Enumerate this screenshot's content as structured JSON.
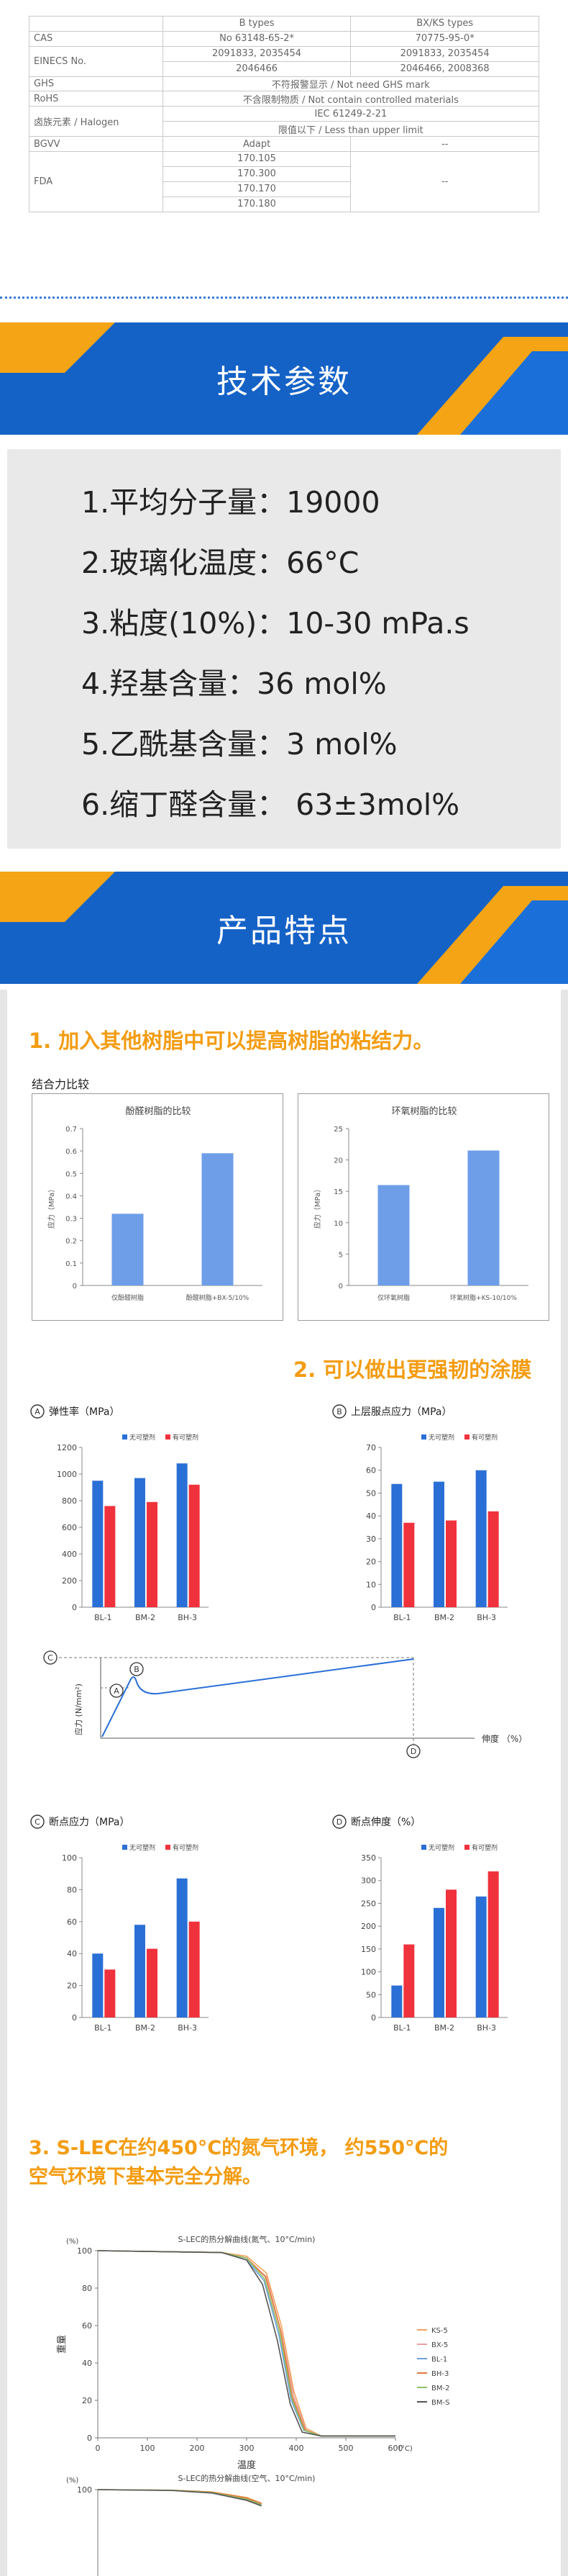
{
  "spec": {
    "header": [
      "",
      "B types",
      "BX/KS types"
    ],
    "cas": {
      "label": "CAS",
      "b": "No 63148-65-2*",
      "bx": "70775-95-0*"
    },
    "einecs": {
      "label": "EINECS No.",
      "b1": "2091833, 2035454",
      "bx1": "2091833, 2035454",
      "b2": "2046466",
      "bx2": "2046466, 2008368"
    },
    "ghs": {
      "label": "GHS",
      "value": "不符报警显示 / Not need GHS mark"
    },
    "rohs": {
      "label": "RoHS",
      "value": "不含限制物质 / Not contain controlled materials"
    },
    "halogen": {
      "label": "卤族元素 / Halogen",
      "v1": "IEC 61249-2-21",
      "v2": "限值以下 / Less than upper limit"
    },
    "bgvv": {
      "label": "BGVV",
      "b": "Adapt",
      "bx": "--"
    },
    "fda": {
      "label": "FDA",
      "b": [
        "170.105",
        "170.300",
        "170.170",
        "170.180"
      ],
      "bx": "--"
    }
  },
  "banner1": {
    "title": "技术参数"
  },
  "params": [
    "1.平均分子量：19000",
    "2.玻璃化温度：66°C",
    "3.粘度(10%)：10-30 mPa.s",
    "4.羟基含量：36 mol%",
    "5.乙酰基含量：3 mol%",
    "6.缩丁醛含量：  63±3mol%"
  ],
  "banner2": {
    "title": "产品特点"
  },
  "features": {
    "h1": "1. 加入其他树脂中可以提高树脂的粘结力。",
    "adhesion_title": "结合力比较",
    "h2": "2. 可以做出更强韧的涂膜",
    "h3_line1": "3. S-LEC在约450°C的氮气环境， 约550°C的",
    "h3_line2": "空气环境下基本完全分解。"
  },
  "stress_strain": {
    "ylabel": "应力 (N/mm²)",
    "xlabel": "伸度 （%）",
    "marks": [
      "C",
      "B",
      "A",
      "D"
    ]
  },
  "colors": {
    "blue": "#2a6fd6",
    "red": "#f0323c",
    "bar_light": "#6e9ee8",
    "orange": "#f39c12",
    "banner": "#1562c7",
    "banner_accent": "#f5a416"
  },
  "chart_data": [
    {
      "type": "bar",
      "title": "酚醛树脂的比较",
      "categories": [
        "仅酚醛树脂",
        "酚醛树脂+BX-5/10%"
      ],
      "values": [
        0.32,
        0.59
      ],
      "ylabel": "应力（MPa）",
      "ylim": [
        0,
        0.7
      ],
      "yticks": [
        "0",
        "0.1",
        "0.2",
        "0.3",
        "0.4",
        "0.5",
        "0.6",
        "0.7"
      ]
    },
    {
      "type": "bar",
      "title": "环氧树脂的比较",
      "categories": [
        "仅环氧树脂",
        "环氧树脂+KS-10/10%"
      ],
      "values": [
        16,
        21.5
      ],
      "ylabel": "应力（MPa）",
      "ylim": [
        0,
        25
      ],
      "yticks": [
        "0",
        "5",
        "10",
        "15",
        "20",
        "25"
      ]
    },
    {
      "type": "bar",
      "title": "弹性率（MPa）",
      "mark": "A",
      "categories": [
        "BL-1",
        "BM-2",
        "BH-3"
      ],
      "series": [
        {
          "name": "无可塑剂",
          "values": [
            950,
            970,
            1080
          ]
        },
        {
          "name": "有可塑剂",
          "values": [
            760,
            790,
            920
          ]
        }
      ],
      "ylim": [
        0,
        1200
      ],
      "yticks": [
        "0",
        "200",
        "400",
        "600",
        "800",
        "1000",
        "1200"
      ]
    },
    {
      "type": "bar",
      "title": "上层服点应力（MPa）",
      "mark": "B",
      "categories": [
        "BL-1",
        "BM-2",
        "BH-3"
      ],
      "series": [
        {
          "name": "无可塑剂",
          "values": [
            54,
            55,
            60
          ]
        },
        {
          "name": "有可塑剂",
          "values": [
            37,
            38,
            42
          ]
        }
      ],
      "ylim": [
        0,
        70
      ],
      "yticks": [
        "0",
        "10",
        "20",
        "30",
        "40",
        "50",
        "60",
        "70"
      ]
    },
    {
      "type": "bar",
      "title": "断点应力（MPa）",
      "mark": "C",
      "categories": [
        "BL-1",
        "BM-2",
        "BH-3"
      ],
      "series": [
        {
          "name": "无可塑剂",
          "values": [
            40,
            58,
            87
          ]
        },
        {
          "name": "有可塑剂",
          "values": [
            30,
            43,
            60
          ]
        }
      ],
      "ylim": [
        0,
        100
      ],
      "yticks": [
        "0",
        "20",
        "40",
        "60",
        "80",
        "100"
      ]
    },
    {
      "type": "bar",
      "title": "断点伸度（%）",
      "mark": "D",
      "categories": [
        "BL-1",
        "BM-2",
        "BH-3"
      ],
      "series": [
        {
          "name": "无可塑剂",
          "values": [
            70,
            240,
            265
          ]
        },
        {
          "name": "有可塑剂",
          "values": [
            160,
            280,
            320
          ]
        }
      ],
      "ylim": [
        0,
        350
      ],
      "yticks": [
        "0",
        "50",
        "100",
        "150",
        "200",
        "250",
        "300",
        "350"
      ]
    },
    {
      "type": "line",
      "title": "S-LEC的热分解曲线(氮气、10°C/min)",
      "xlabel": "温度",
      "ylabel": "重量",
      "xunit": "(°C)",
      "yunit": "(%)",
      "xlim": [
        0,
        600
      ],
      "ylim": [
        0,
        100
      ],
      "xticks": [
        "0",
        "100",
        "200",
        "300",
        "400",
        "500",
        "600"
      ],
      "yticks": [
        "0",
        "20",
        "40",
        "60",
        "80",
        "100"
      ],
      "series": [
        {
          "name": "KS-5",
          "color": "#f4a15a",
          "points": [
            [
              0,
              100
            ],
            [
              250,
              99
            ],
            [
              300,
              97
            ],
            [
              340,
              88
            ],
            [
              370,
              60
            ],
            [
              395,
              25
            ],
            [
              420,
              5
            ],
            [
              450,
              1
            ],
            [
              600,
              1
            ]
          ]
        },
        {
          "name": "BX-5",
          "color": "#e8a0a0",
          "points": [
            [
              0,
              100
            ],
            [
              250,
              99
            ],
            [
              300,
              96
            ],
            [
              340,
              86
            ],
            [
              370,
              56
            ],
            [
              395,
              22
            ],
            [
              420,
              4
            ],
            [
              450,
              1
            ],
            [
              600,
              1
            ]
          ]
        },
        {
          "name": "BL-1",
          "color": "#6aa0e0",
          "points": [
            [
              0,
              100
            ],
            [
              250,
              99
            ],
            [
              300,
              95
            ],
            [
              335,
              84
            ],
            [
              365,
              55
            ],
            [
              390,
              20
            ],
            [
              415,
              4
            ],
            [
              450,
              1
            ],
            [
              600,
              1
            ]
          ]
        },
        {
          "name": "BH-3",
          "color": "#e07a3a",
          "points": [
            [
              0,
              100
            ],
            [
              250,
              99
            ],
            [
              300,
              96
            ],
            [
              338,
              86
            ],
            [
              368,
              58
            ],
            [
              392,
              22
            ],
            [
              418,
              4
            ],
            [
              450,
              1
            ],
            [
              600,
              1
            ]
          ]
        },
        {
          "name": "BM-2",
          "color": "#8cbf6a",
          "points": [
            [
              0,
              100
            ],
            [
              250,
              99
            ],
            [
              300,
              96
            ],
            [
              336,
              85
            ],
            [
              366,
              57
            ],
            [
              391,
              21
            ],
            [
              416,
              4
            ],
            [
              450,
              1
            ],
            [
              600,
              1
            ]
          ]
        },
        {
          "name": "BM-S",
          "color": "#555555",
          "points": [
            [
              0,
              100
            ],
            [
              250,
              99
            ],
            [
              300,
              95
            ],
            [
              332,
              82
            ],
            [
              362,
              52
            ],
            [
              388,
              18
            ],
            [
              412,
              3
            ],
            [
              450,
              1
            ],
            [
              600,
              1
            ]
          ]
        }
      ]
    },
    {
      "type": "line",
      "title": "S-LEC的热分解曲线(空气、10°C/min)",
      "yunit": "(%)",
      "xlim": [
        0,
        600
      ],
      "ylim": [
        0,
        100
      ],
      "yticks": [
        "100"
      ],
      "series": [
        {
          "name": "KS-5",
          "color": "#f4a15a",
          "points": [
            [
              0,
              100
            ],
            [
              150,
              99.5
            ],
            [
              230,
              98
            ],
            [
              300,
              93
            ],
            [
              330,
              88
            ]
          ]
        },
        {
          "name": "BX-5",
          "color": "#e8a0a0",
          "points": [
            [
              0,
              100
            ],
            [
              150,
              99.4
            ],
            [
              230,
              97.6
            ],
            [
              300,
              92
            ],
            [
              330,
              87
            ]
          ]
        },
        {
          "name": "BL-1",
          "color": "#6aa0e0",
          "points": [
            [
              0,
              100
            ],
            [
              150,
              99.3
            ],
            [
              230,
              97.2
            ],
            [
              300,
              91
            ],
            [
              330,
              86
            ]
          ]
        },
        {
          "name": "BH-3",
          "color": "#e07a3a",
          "points": [
            [
              0,
              100
            ],
            [
              150,
              99.5
            ],
            [
              230,
              97.8
            ],
            [
              300,
              92.5
            ],
            [
              330,
              87.5
            ]
          ]
        },
        {
          "name": "BM-2",
          "color": "#8cbf6a",
          "points": [
            [
              0,
              100
            ],
            [
              150,
              99.4
            ],
            [
              230,
              97.4
            ],
            [
              300,
              91.5
            ],
            [
              330,
              86.5
            ]
          ]
        },
        {
          "name": "BM-S",
          "color": "#555555",
          "points": [
            [
              0,
              100
            ],
            [
              150,
              99.2
            ],
            [
              230,
              97
            ],
            [
              300,
              90.5
            ],
            [
              330,
              85.5
            ]
          ]
        }
      ]
    }
  ]
}
